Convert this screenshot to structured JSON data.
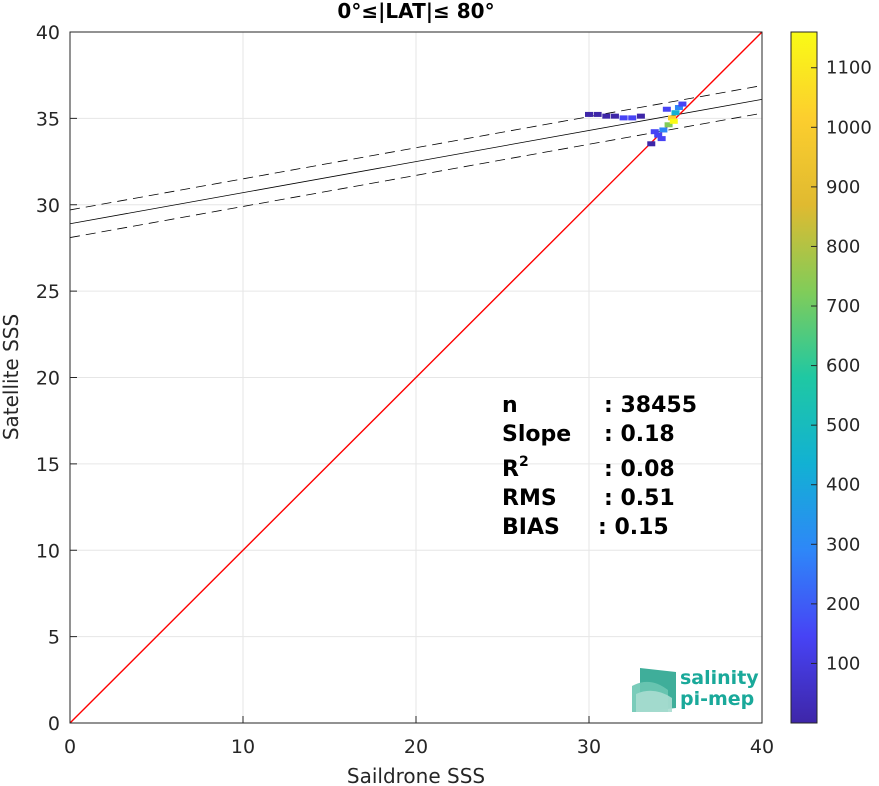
{
  "chart_data": {
    "type": "scatter",
    "title": "0°≤|LAT|≤ 80°",
    "xlabel": "Saildrone SSS",
    "ylabel": "Satellite SSS",
    "xlim": [
      0,
      40
    ],
    "ylim": [
      0,
      40
    ],
    "xticks": [
      "0",
      "10",
      "20",
      "30",
      "40"
    ],
    "yticks": [
      "0",
      "5",
      "10",
      "15",
      "20",
      "25",
      "30",
      "35",
      "40"
    ],
    "grid": true,
    "identity_line": {
      "color": "#ff0000",
      "x": [
        0,
        40
      ],
      "y": [
        0,
        40
      ]
    },
    "regression_line": {
      "slope": 0.18,
      "intercept": 28.9,
      "color": "#000000"
    },
    "confidence_band": {
      "offset": 0.8,
      "style": "dashed"
    },
    "density_points": [
      {
        "x": 30.0,
        "y": 35.2,
        "count": 60
      },
      {
        "x": 30.5,
        "y": 35.2,
        "count": 60
      },
      {
        "x": 31.0,
        "y": 35.1,
        "count": 70
      },
      {
        "x": 31.5,
        "y": 35.1,
        "count": 70
      },
      {
        "x": 32.0,
        "y": 35.0,
        "count": 80
      },
      {
        "x": 32.5,
        "y": 35.0,
        "count": 80
      },
      {
        "x": 33.0,
        "y": 35.1,
        "count": 60
      },
      {
        "x": 33.8,
        "y": 34.2,
        "count": 120
      },
      {
        "x": 34.0,
        "y": 34.0,
        "count": 150
      },
      {
        "x": 34.3,
        "y": 34.3,
        "count": 300
      },
      {
        "x": 34.5,
        "y": 35.5,
        "count": 200
      },
      {
        "x": 34.6,
        "y": 34.6,
        "count": 700
      },
      {
        "x": 34.8,
        "y": 35.0,
        "count": 1000
      },
      {
        "x": 34.9,
        "y": 34.8,
        "count": 1150
      },
      {
        "x": 35.0,
        "y": 35.3,
        "count": 500
      },
      {
        "x": 35.2,
        "y": 35.6,
        "count": 250
      },
      {
        "x": 35.4,
        "y": 35.8,
        "count": 120
      },
      {
        "x": 34.2,
        "y": 33.8,
        "count": 90
      },
      {
        "x": 33.6,
        "y": 33.5,
        "count": 50
      }
    ],
    "colorbar": {
      "min": 0,
      "max": 1160,
      "ticks": [
        "100",
        "200",
        "300",
        "400",
        "500",
        "600",
        "700",
        "800",
        "900",
        "1000",
        "1100"
      ],
      "colors": [
        "#3e26a8",
        "#4743f5",
        "#2e87f8",
        "#12b1d3",
        "#1fc8a3",
        "#81cc59",
        "#e0ba30",
        "#fcce2e",
        "#f9fb15"
      ]
    },
    "stats": {
      "n_label": "n",
      "n_value": ": 38455",
      "slope_label": "Slope",
      "slope_value": ": 0.18",
      "r2_label": "R",
      "r2_sup": "2",
      "r2_value": ": 0.08",
      "rms_label": "RMS",
      "rms_value": ": 0.51",
      "bias_label": "BIAS",
      "bias_value": ": 0.15"
    }
  },
  "logo": {
    "line1": "salinity",
    "line2": "pi-mep"
  }
}
